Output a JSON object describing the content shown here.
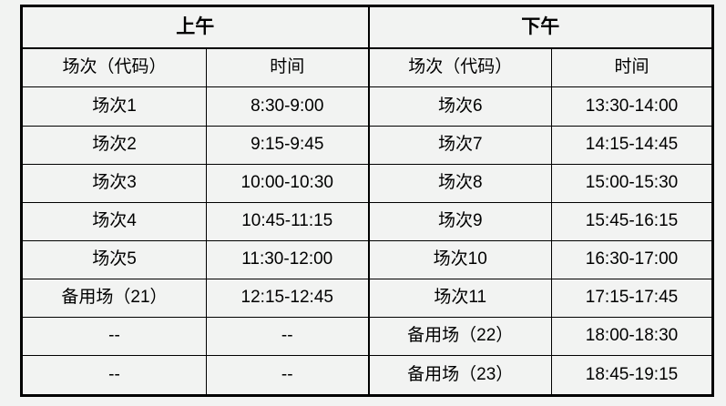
{
  "colors": {
    "background": "#f2f3f2",
    "border": "#000000",
    "text": "#000000"
  },
  "table": {
    "group_headers": {
      "morning": "上午",
      "afternoon": "下午"
    },
    "column_headers": [
      "场次（代码）",
      "时间",
      "场次（代码）",
      "时间"
    ],
    "rows": [
      [
        "场次1",
        "8:30-9:00",
        "场次6",
        "13:30-14:00"
      ],
      [
        "场次2",
        "9:15-9:45",
        "场次7",
        "14:15-14:45"
      ],
      [
        "场次3",
        "10:00-10:30",
        "场次8",
        "15:00-15:30"
      ],
      [
        "场次4",
        "10:45-11:15",
        "场次9",
        "15:45-16:15"
      ],
      [
        "场次5",
        "11:30-12:00",
        "场次10",
        "16:30-17:00"
      ],
      [
        "备用场（21）",
        "12:15-12:45",
        "场次11",
        "17:15-17:45"
      ],
      [
        "--",
        "--",
        "备用场（22）",
        "18:00-18:30"
      ],
      [
        "--",
        "--",
        "备用场（23）",
        "18:45-19:15"
      ]
    ]
  }
}
